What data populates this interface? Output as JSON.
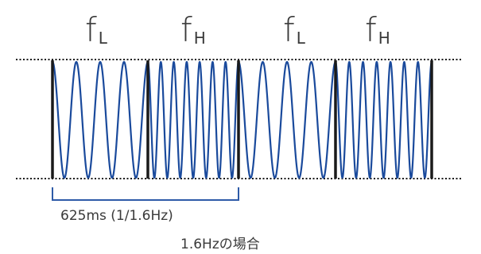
{
  "segments": [
    {
      "main": "f",
      "sub": "L",
      "cycles": 4
    },
    {
      "main": "f",
      "sub": "H",
      "cycles": 7
    },
    {
      "main": "f",
      "sub": "L",
      "cycles": 4
    },
    {
      "main": "f",
      "sub": "H",
      "cycles": 7
    }
  ],
  "period_label": "625ms (1/1.6Hz)",
  "case_label": "1.6Hzの場合",
  "colors": {
    "wave": "#1a4a9c",
    "marker": "#1a1a1a",
    "bracket": "#2e5ba8",
    "text": "#3a3a3a",
    "guide": "#1a1a1a"
  }
}
